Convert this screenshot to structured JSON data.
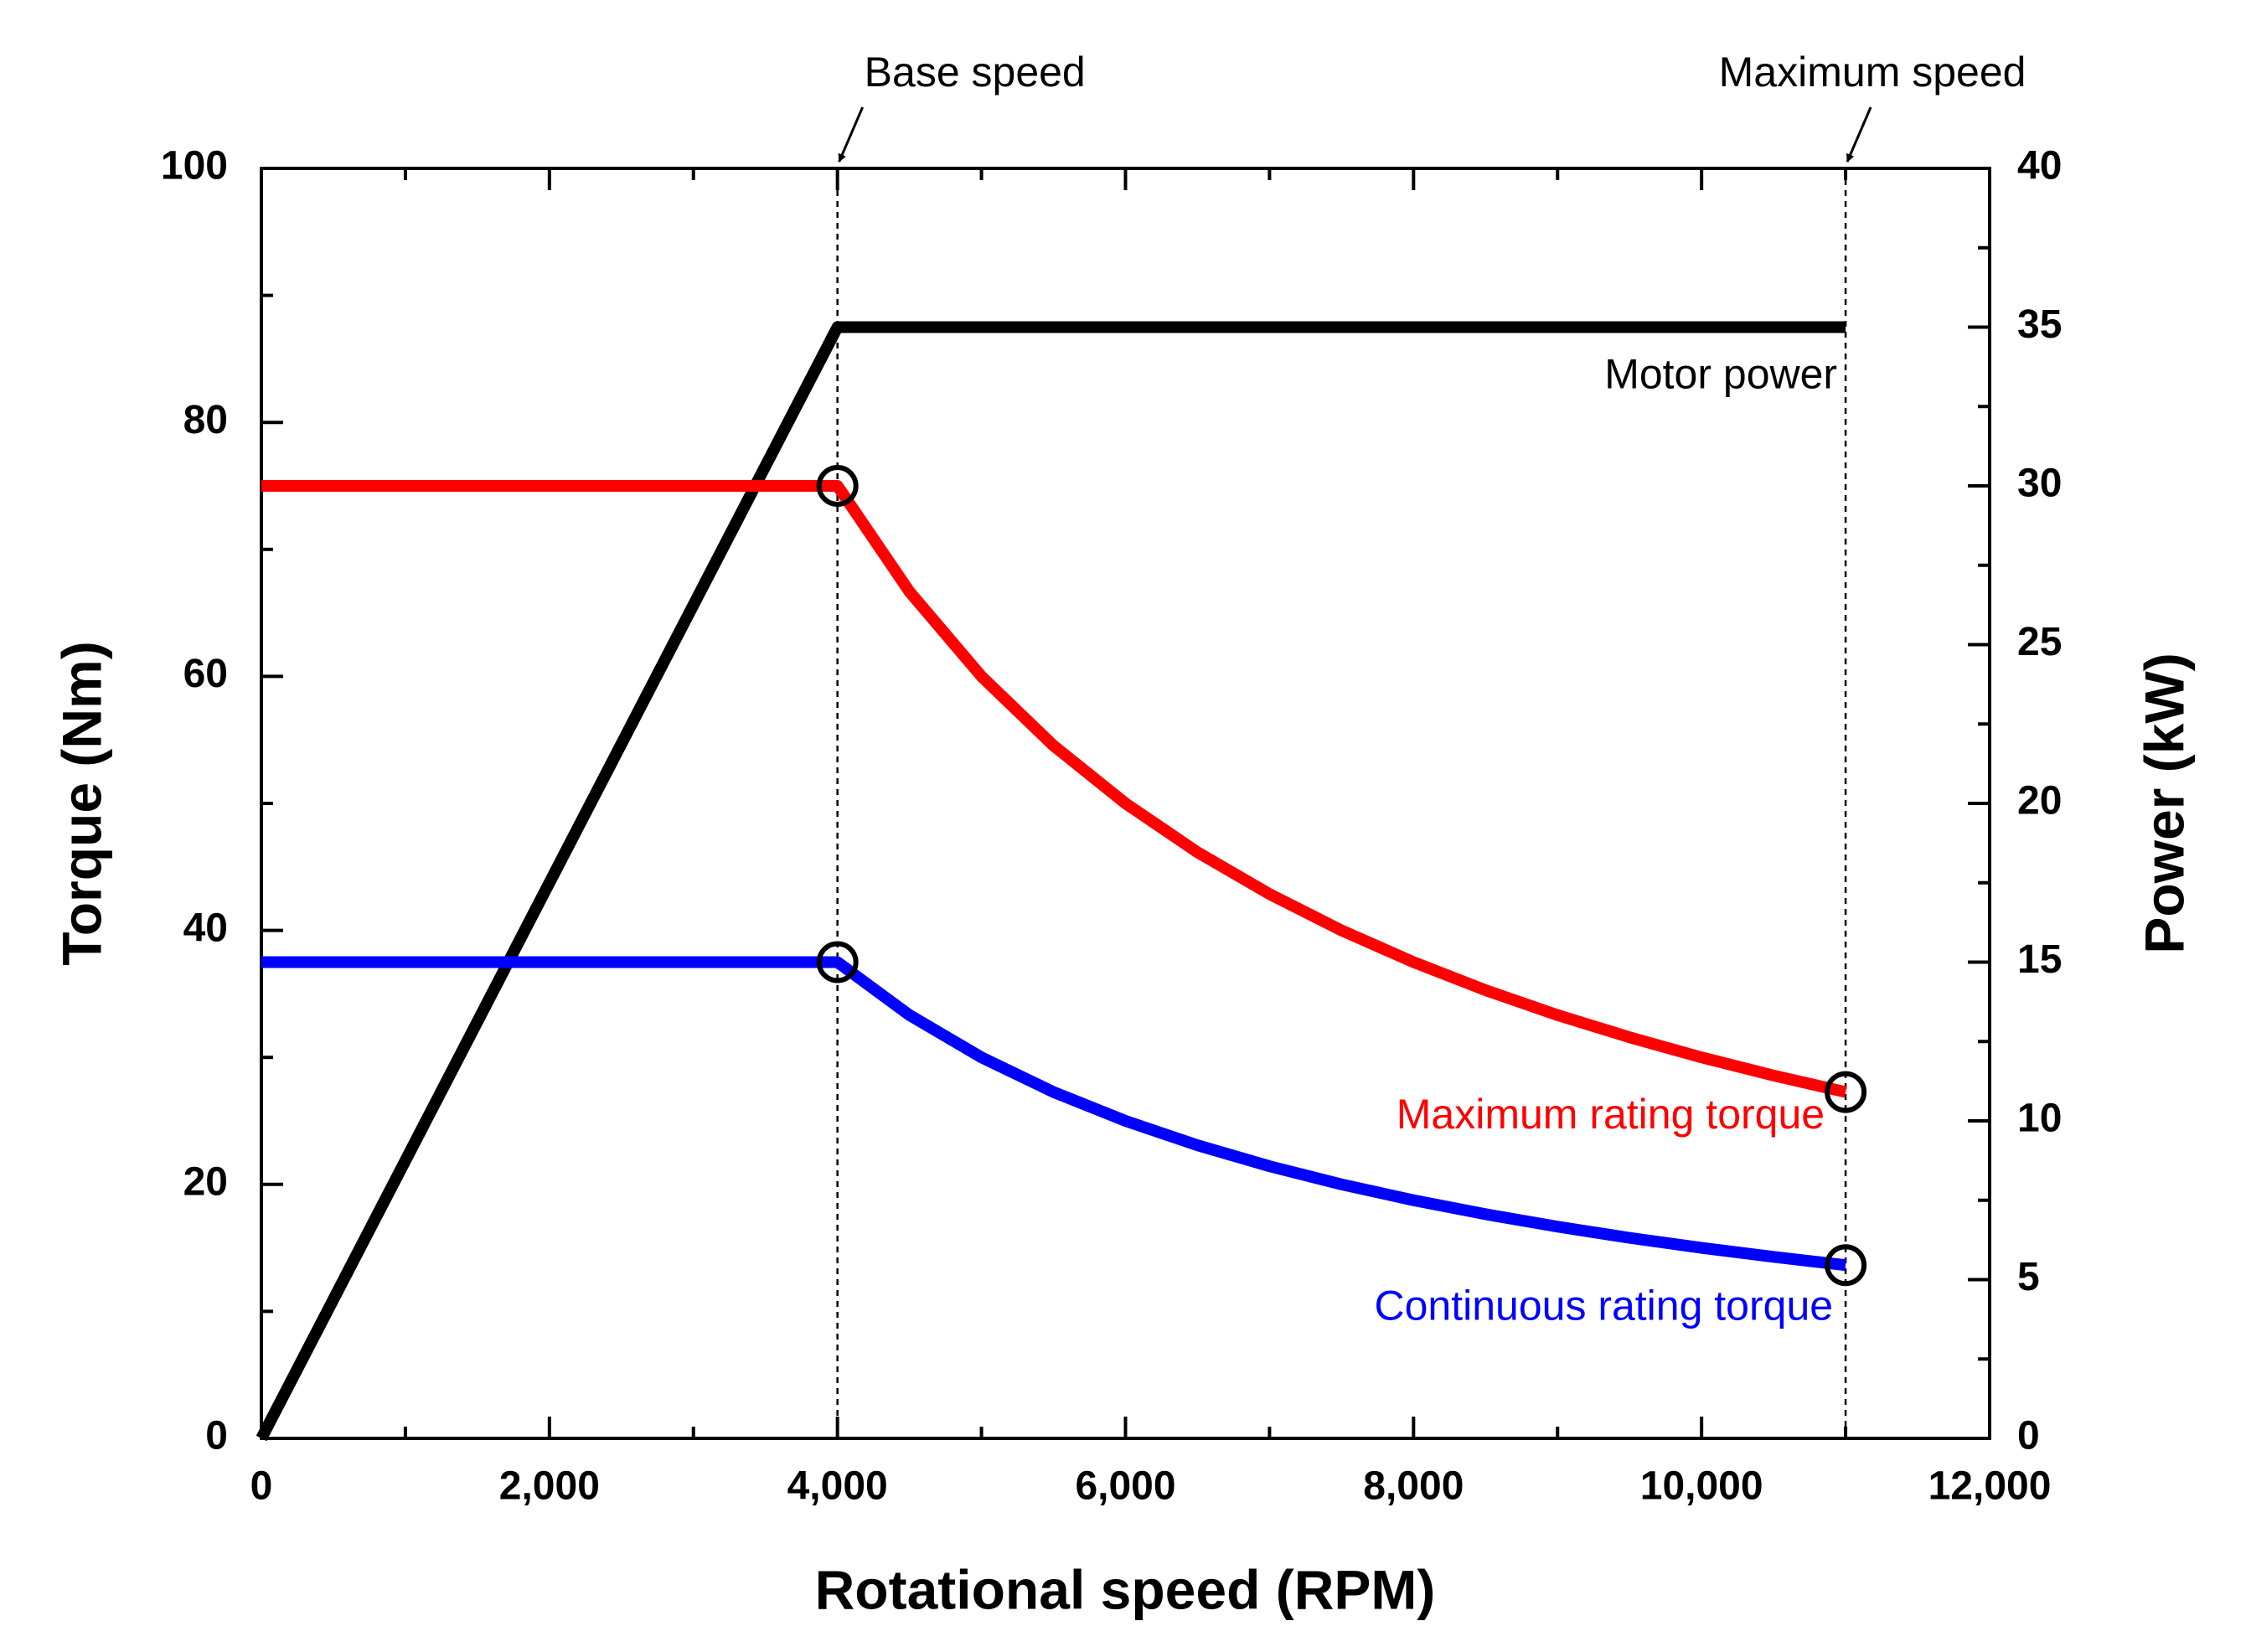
{
  "chart_data": {
    "type": "line",
    "x_label": "Rotational speed (RPM)",
    "y_label": "Torque (Nm)",
    "y2_label": "Power (kW)",
    "xlim": [
      0,
      12000
    ],
    "xticks": [
      0,
      {
        "value": 2000,
        "label": "2,000"
      },
      {
        "value": 4000,
        "label": "4,000"
      },
      {
        "value": 6000,
        "label": "6,000"
      },
      {
        "value": 8000,
        "label": "8,000"
      },
      {
        "value": 10000,
        "label": "10,000"
      },
      {
        "value": 12000,
        "label": "12,000"
      }
    ],
    "ylim": [
      0,
      100
    ],
    "yticks": [
      0,
      20,
      40,
      60,
      80,
      100
    ],
    "y2lim": [
      0,
      40
    ],
    "y2ticks": [
      0,
      5,
      10,
      15,
      20,
      25,
      30,
      35,
      40
    ],
    "annotations": [
      {
        "text": "Base speed",
        "x": 4000
      },
      {
        "text": "Maximum speed",
        "x": 11000
      }
    ],
    "series": [
      {
        "name": "Motor power",
        "color": "#000000",
        "axis": "y2",
        "x": [
          0,
          4000,
          11000
        ],
        "values": [
          0,
          35,
          35
        ]
      },
      {
        "name": "Maximum rating torque",
        "color": "#ff0000",
        "marker": "circle",
        "x": [
          0,
          4000,
          4500,
          5000,
          5500,
          6000,
          6500,
          7000,
          7500,
          8000,
          8500,
          9000,
          9500,
          10000,
          10500,
          11000
        ],
        "values": [
          75,
          75,
          66.67,
          60,
          54.55,
          50,
          46.15,
          42.86,
          40,
          37.5,
          35.29,
          33.33,
          31.58,
          30,
          28.57,
          27.27
        ]
      },
      {
        "name": "Continuous rating torque",
        "color": "#0000ff",
        "marker": "circle",
        "x": [
          0,
          4000,
          4500,
          5000,
          5500,
          6000,
          6500,
          7000,
          7500,
          8000,
          8500,
          9000,
          9500,
          10000,
          10500,
          11000
        ],
        "values": [
          37.5,
          37.5,
          33.33,
          30,
          27.27,
          25,
          23.08,
          21.43,
          20,
          18.75,
          17.65,
          16.67,
          15.79,
          15,
          14.29,
          13.64
        ]
      }
    ]
  }
}
